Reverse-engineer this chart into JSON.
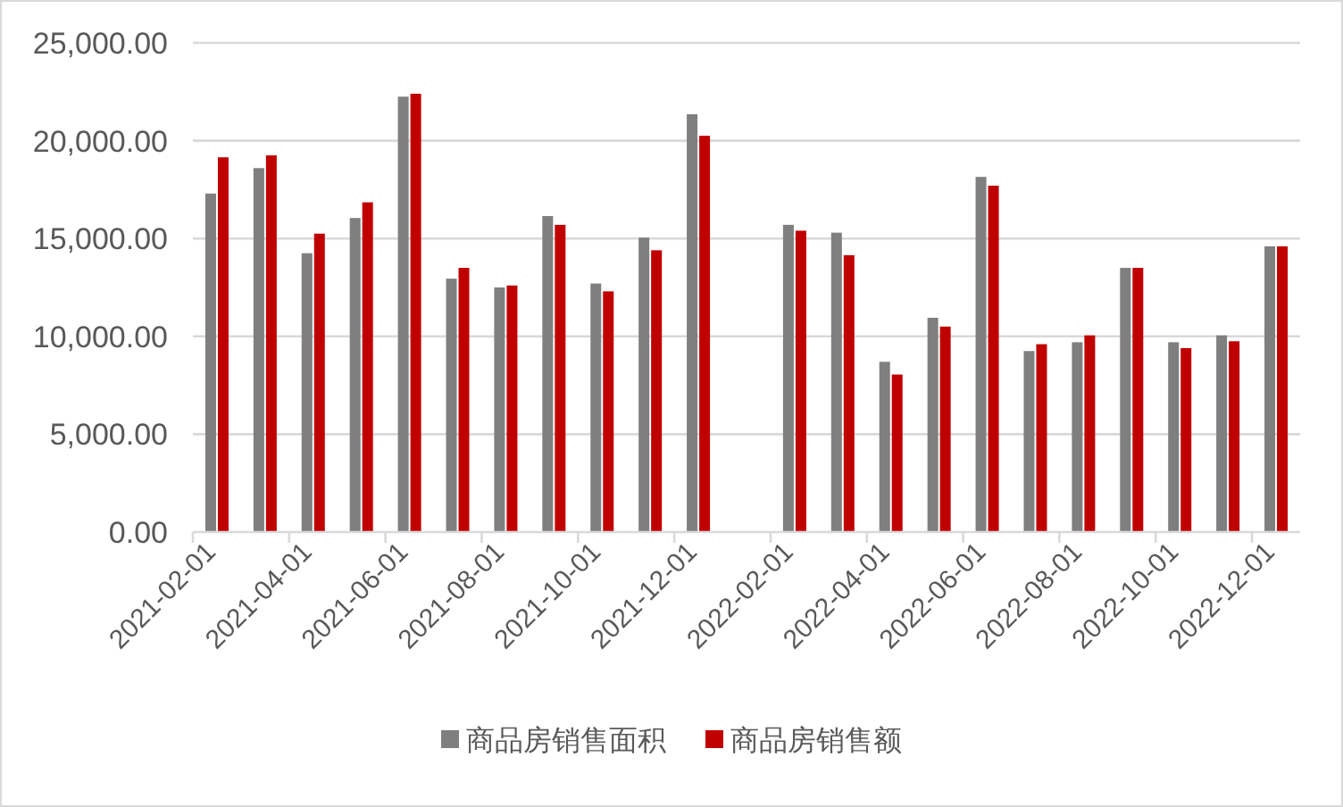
{
  "chart_data": {
    "type": "bar",
    "categories": [
      "2021-02-01",
      null,
      "2021-04-01",
      null,
      "2021-06-01",
      null,
      "2021-08-01",
      null,
      "2021-10-01",
      null,
      "2021-12-01",
      null,
      "2022-02-01",
      null,
      "2022-04-01",
      null,
      "2022-06-01",
      null,
      "2022-08-01",
      null,
      "2022-10-01",
      null,
      "2022-12-01"
    ],
    "series": [
      {
        "name": "商品房销售面积",
        "color": "#7f7f7f",
        "values": [
          17300,
          18600,
          14250,
          16050,
          22250,
          12950,
          12500,
          16150,
          12700,
          15050,
          21350,
          null,
          15700,
          15300,
          8700,
          10950,
          18150,
          9250,
          9700,
          13500,
          9700,
          10050,
          14600
        ]
      },
      {
        "name": "商品房销售额",
        "color": "#c00000",
        "values": [
          19150,
          19250,
          15250,
          16850,
          22400,
          13500,
          12600,
          15700,
          12300,
          14400,
          20250,
          null,
          15400,
          14150,
          8050,
          10500,
          17700,
          9600,
          10050,
          13500,
          9400,
          9750,
          14600
        ]
      }
    ],
    "ylim": [
      0,
      25000
    ],
    "yticks": [
      {
        "value": 0,
        "label": "0.00"
      },
      {
        "value": 5000,
        "label": "5,000.00"
      },
      {
        "value": 10000,
        "label": "10,000.00"
      },
      {
        "value": 15000,
        "label": "15,000.00"
      },
      {
        "value": 20000,
        "label": "20,000.00"
      },
      {
        "value": 25000,
        "label": "25,000.00"
      }
    ],
    "grid": "y",
    "legend": "bottom"
  }
}
